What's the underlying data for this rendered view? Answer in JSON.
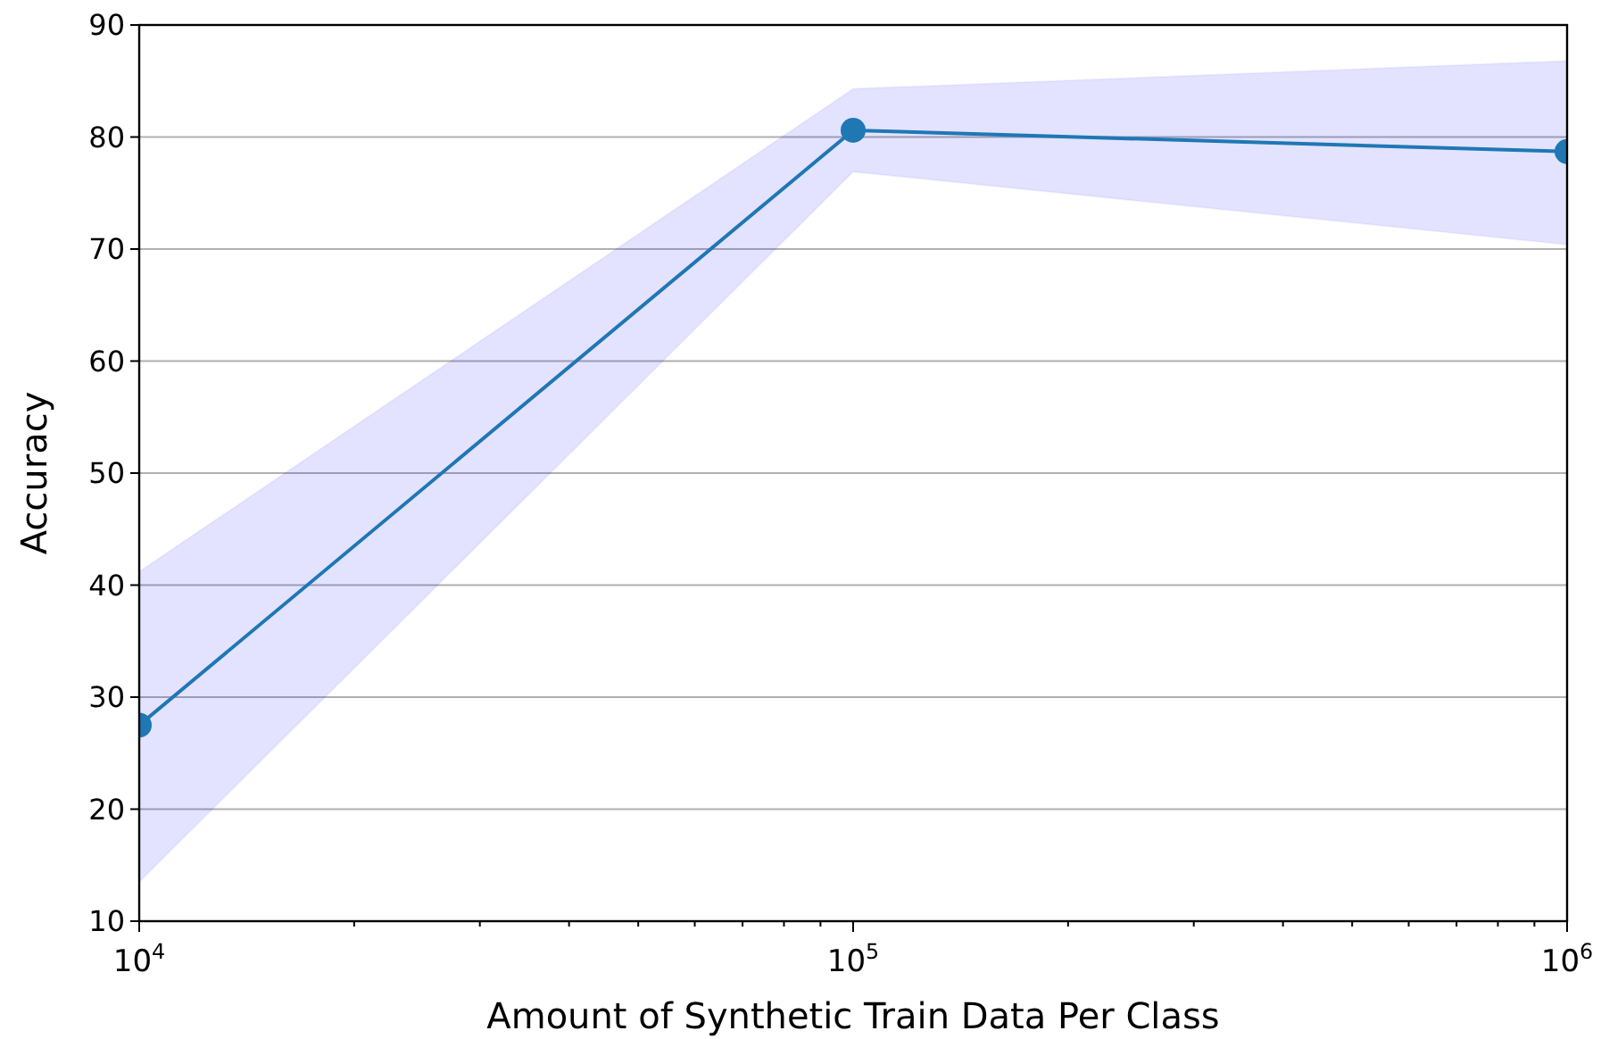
{
  "chart_data": {
    "type": "line",
    "xlabel": "Amount of Synthetic Train Data Per Class",
    "ylabel": "Accuracy",
    "x": [
      10000,
      100000,
      1000000
    ],
    "series": [
      {
        "color": "#1f77b4",
        "values": [
          27.5,
          80.6,
          78.7
        ],
        "lower": [
          13.5,
          76.9,
          70.4
        ],
        "upper": [
          41.2,
          84.3,
          86.8
        ]
      }
    ],
    "log": "x",
    "xlim": [
      10000,
      1000000
    ],
    "xticks": [
      {
        "value": 10000,
        "label": "10$^{4}$"
      },
      {
        "value": 100000,
        "label": "10$^{5}$"
      },
      {
        "value": 1000000,
        "label": "10$^{6}$"
      }
    ],
    "ylim": [
      10,
      90
    ],
    "yticks": [
      10,
      20,
      30,
      40,
      50,
      60,
      70,
      80,
      90
    ],
    "grid": "y",
    "marker": "circle",
    "line_style": "solid"
  }
}
